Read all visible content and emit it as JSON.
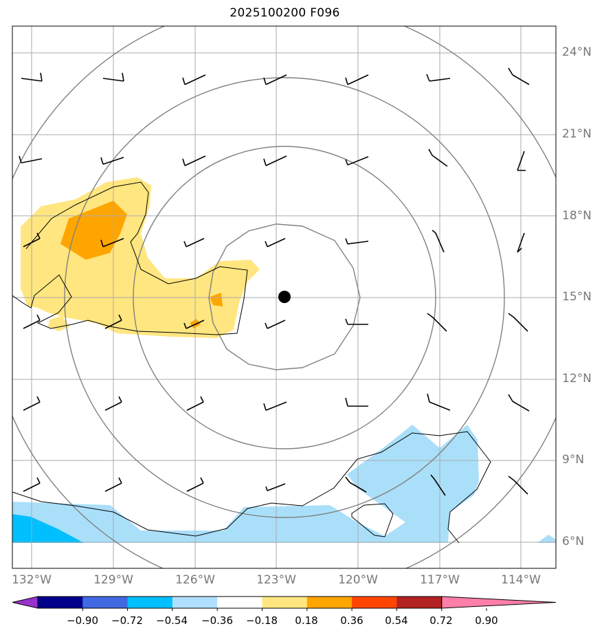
{
  "title": "2025100200 F096",
  "map": {
    "lat_ticks": [
      "24°N",
      "21°N",
      "18°N",
      "15°N",
      "12°N",
      "9°N",
      "6°N"
    ],
    "lon_ticks": [
      "132°W",
      "129°W",
      "126°W",
      "123°W",
      "120°W",
      "117°W",
      "114°W"
    ],
    "extent": {
      "lon_min": -132.7,
      "lon_max": -112.7,
      "lat_min": 5.0,
      "lat_max": 25.0
    },
    "storm_center": {
      "lon": -122.7,
      "lat": 15.0
    },
    "range_rings": 4,
    "gridlines": true
  },
  "colorbar": {
    "ticks": [
      "−0.90",
      "−0.72",
      "−0.54",
      "−0.36",
      "−0.18",
      "0.18",
      "0.36",
      "0.54",
      "0.72",
      "0.90"
    ],
    "colors": [
      "#9932cc",
      "#00008b",
      "#4169e1",
      "#00bfff",
      "#b0e0ff",
      "#ffffff",
      "#ffe680",
      "#ffa500",
      "#ff4500",
      "#b22222",
      "#ff7fa8"
    ],
    "extend": "both"
  },
  "colors": {
    "light_blue": "#aadff9",
    "mid_blue": "#00bfff",
    "light_yellow": "#ffe680",
    "orange": "#ffa500"
  }
}
